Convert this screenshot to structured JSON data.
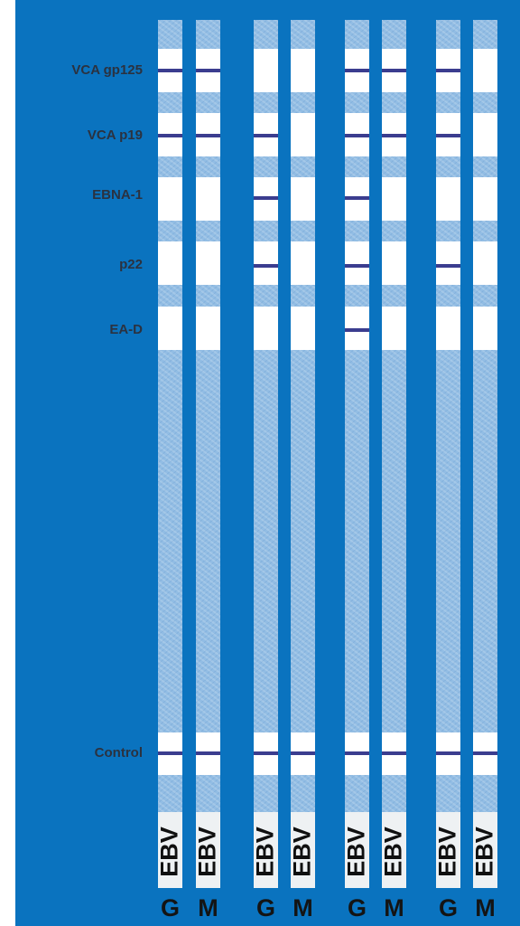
{
  "band_labels": {
    "vca_gp125": "VCA gp125",
    "vca_p19": "VCA p19",
    "ebna_1": "EBNA-1",
    "p22": "p22",
    "ea_d": "EA-D",
    "control": "Control"
  },
  "strips": [
    {
      "text": "EBV",
      "type": "G",
      "bands": [
        "VCA gp125",
        "VCA p19",
        "Control"
      ]
    },
    {
      "text": "EBV",
      "type": "M",
      "bands": [
        "VCA gp125",
        "VCA p19",
        "Control"
      ]
    },
    {
      "text": "EBV",
      "type": "G",
      "bands": [
        "VCA p19",
        "EBNA-1",
        "p22",
        "Control"
      ]
    },
    {
      "text": "EBV",
      "type": "M",
      "bands": [
        "Control"
      ]
    },
    {
      "text": "EBV",
      "type": "G",
      "bands": [
        "VCA gp125",
        "VCA p19",
        "EBNA-1",
        "p22",
        "EA-D",
        "Control"
      ]
    },
    {
      "text": "EBV",
      "type": "M",
      "bands": [
        "VCA gp125",
        "VCA p19",
        "Control"
      ]
    },
    {
      "text": "EBV",
      "type": "G",
      "bands": [
        "VCA gp125",
        "VCA p19",
        "p22",
        "Control"
      ]
    },
    {
      "text": "EBV",
      "type": "M",
      "bands": [
        "Control"
      ]
    }
  ],
  "colors": {
    "background": "#0a73bf",
    "strip": "#92bde4",
    "band_line": "#3b3d8f"
  }
}
